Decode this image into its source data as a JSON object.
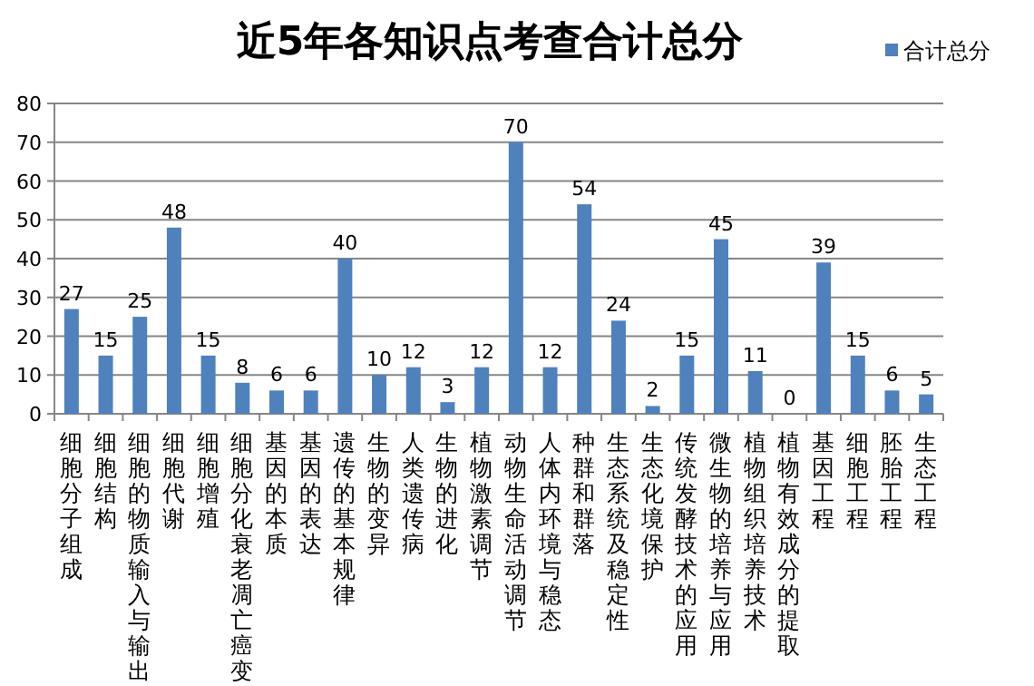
{
  "chart_data": {
    "type": "bar",
    "title": "近5年各知识点考查合计总分",
    "categories": [
      "细胞分子组成",
      "细胞结构",
      "细胞的物质输入与输出",
      "细胞代谢",
      "细胞增殖",
      "细胞分化衰老凋亡癌变",
      "基因的本质",
      "基因的表达",
      "遗传的基本规律",
      "生物的变异",
      "人类遗传病",
      "生物的进化",
      "植物激素调节",
      "动物生命活动调节",
      "人体内环境与稳态",
      "种群和群落",
      "生态系统及稳定性",
      "生态化境保护",
      "传统发酵技术的应用",
      "微生物的培养与应用",
      "植物组织培养技术",
      "植物有效成分的提取",
      "基因工程",
      "细胞工程",
      "胚胎工程",
      "生态工程"
    ],
    "series": [
      {
        "name": "合计总分",
        "color": "#4f81bd",
        "values": [
          27,
          15,
          25,
          48,
          15,
          8,
          6,
          6,
          40,
          10,
          12,
          3,
          12,
          70,
          12,
          54,
          24,
          2,
          15,
          45,
          11,
          0,
          39,
          15,
          6,
          5
        ]
      }
    ],
    "ylim": [
      0,
      80
    ],
    "yticks": [
      0,
      10,
      20,
      30,
      40,
      50,
      60,
      70,
      80
    ],
    "grid": "y",
    "legend": "top right",
    "data_labels": true
  }
}
